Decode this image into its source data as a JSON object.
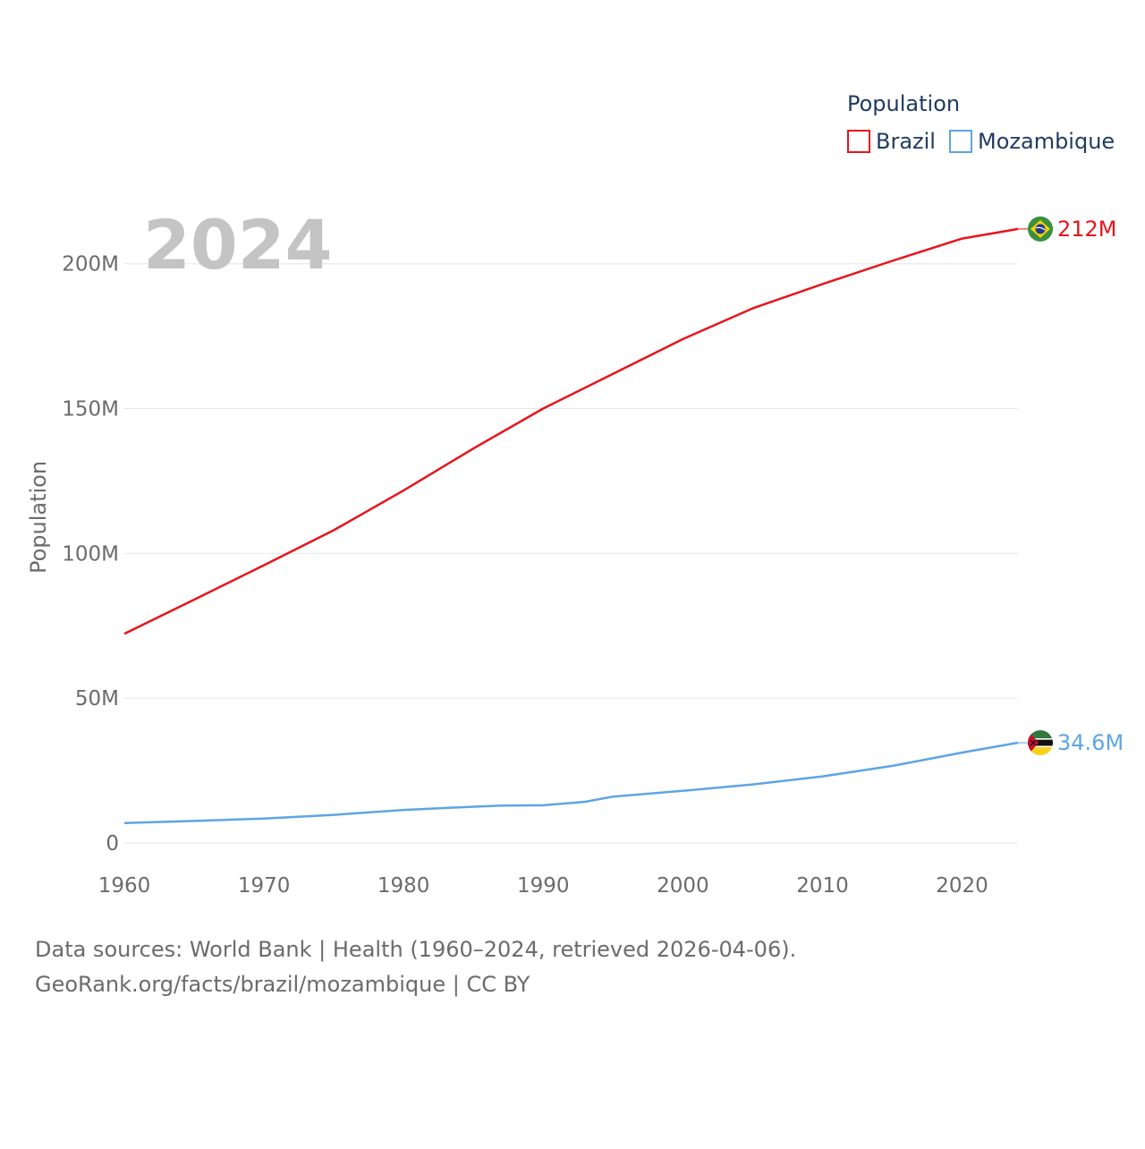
{
  "chart_data": {
    "type": "line",
    "title": "",
    "current_year": "2024",
    "xlabel": "",
    "ylabel": "Population",
    "xlim": [
      1960,
      2024
    ],
    "ylim": [
      0,
      220000000
    ],
    "x_ticks": [
      1960,
      1970,
      1980,
      1990,
      2000,
      2010,
      2020
    ],
    "x_tick_labels": [
      "1960",
      "1970",
      "1980",
      "1990",
      "2000",
      "2010",
      "2020"
    ],
    "y_ticks": [
      0,
      50000000,
      100000000,
      150000000,
      200000000
    ],
    "y_tick_labels": [
      "0",
      "50M",
      "100M",
      "150M",
      "200M"
    ],
    "grid": true,
    "legend": {
      "title": "Population",
      "position": "top-right",
      "entries": [
        "Brazil",
        "Mozambique"
      ]
    },
    "series": [
      {
        "name": "Brazil",
        "color": "#e8141b",
        "end_label": "212M",
        "flag_icon": "brazil-flag-icon",
        "points": [
          [
            1960,
            72.2
          ],
          [
            1965,
            84.0
          ],
          [
            1970,
            95.9
          ],
          [
            1975,
            108.0
          ],
          [
            1980,
            121.7
          ],
          [
            1985,
            136.2
          ],
          [
            1990,
            150.0
          ],
          [
            1995,
            162.0
          ],
          [
            2000,
            174.0
          ],
          [
            2005,
            184.6
          ],
          [
            2010,
            193.0
          ],
          [
            2015,
            201.0
          ],
          [
            2020,
            208.7
          ],
          [
            2024,
            212.0
          ]
        ]
      },
      {
        "name": "Mozambique",
        "color": "#5da5e5",
        "end_label": "34.6M",
        "flag_icon": "mozambique-flag-icon",
        "points": [
          [
            1960,
            6.9
          ],
          [
            1965,
            7.6
          ],
          [
            1970,
            8.4
          ],
          [
            1975,
            9.7
          ],
          [
            1980,
            11.4
          ],
          [
            1985,
            12.5
          ],
          [
            1987,
            12.9
          ],
          [
            1990,
            13.0
          ],
          [
            1993,
            14.2
          ],
          [
            1995,
            16.0
          ],
          [
            2000,
            18.0
          ],
          [
            2005,
            20.2
          ],
          [
            2010,
            23.0
          ],
          [
            2015,
            26.6
          ],
          [
            2020,
            31.2
          ],
          [
            2024,
            34.6
          ]
        ]
      }
    ]
  },
  "footer": {
    "line1": "Data sources: World Bank | Health (1960–2024, retrieved 2026-04-06).",
    "line2": "GeoRank.org/facts/brazil/mozambique | CC BY"
  }
}
